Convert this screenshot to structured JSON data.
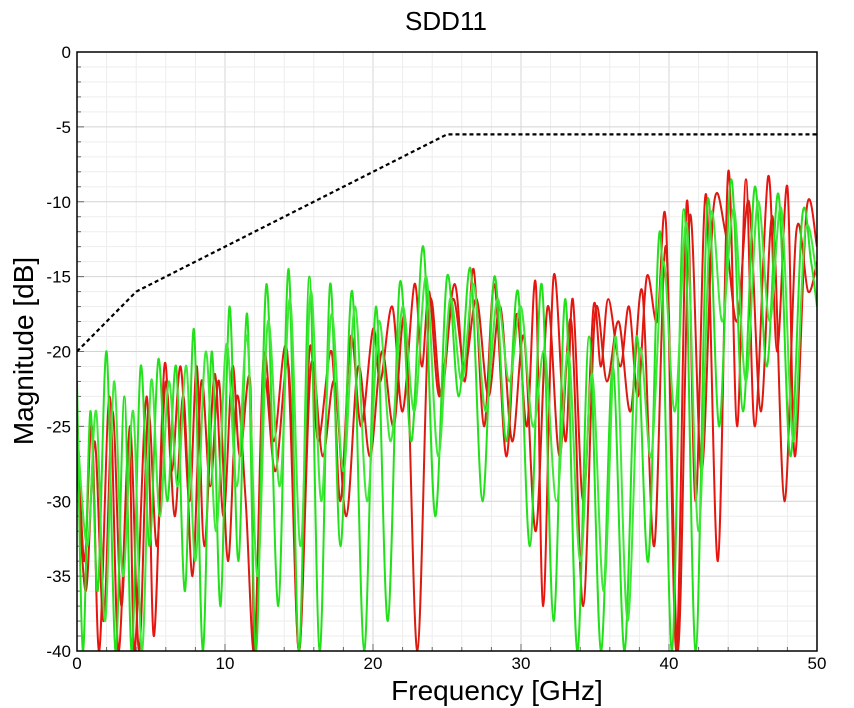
{
  "chart_data": {
    "type": "line",
    "title": "SDD11",
    "xlabel": "Frequency [GHz]",
    "ylabel": "Magnitude [dB]",
    "xlim": [
      0,
      50
    ],
    "ylim": [
      -40,
      0
    ],
    "xticks": [
      "0",
      "10",
      "20",
      "30",
      "40",
      "50"
    ],
    "yticks": [
      "0",
      "-5",
      "-10",
      "-15",
      "-20",
      "-25",
      "-30",
      "-35",
      "-40"
    ],
    "grid": true,
    "legend": "none",
    "mask": {
      "color": "#000000",
      "style": "dashed",
      "x": [
        0,
        4,
        25,
        50
      ],
      "y": [
        -20,
        -16,
        -5.5,
        -5.5
      ]
    },
    "series": [
      {
        "color": "#e8140f",
        "x": [
          0,
          0.5,
          1,
          1.5,
          2.2,
          2.8,
          3.5,
          3.9,
          4.7,
          5.2,
          5.9,
          6.4,
          7,
          7.6,
          8.1,
          8.6,
          9.3,
          9.9,
          10.5,
          11,
          11.7,
          12,
          12.6,
          13.3,
          14.2,
          15,
          15.7,
          16.3,
          17.2,
          17.8,
          18.5,
          19.2,
          20,
          20.5,
          21.3,
          22,
          22.8,
          23.3,
          23.8,
          24.5,
          25.5,
          26.2,
          26.8,
          27.5,
          28.2,
          29,
          29.7,
          30.4,
          31,
          31.5,
          32.2,
          33,
          33.5,
          34.2,
          34.9,
          35.4,
          35.9,
          36.7,
          37.3,
          37.9,
          38.5,
          39.2,
          39.8,
          40.5,
          41.2,
          41.8,
          42.5,
          43.3,
          44,
          44.6,
          45.2,
          45.8,
          46.7,
          47.3,
          48,
          48.5,
          49.3,
          50
        ],
        "y": [
          -24,
          -34,
          -25,
          -40,
          -23,
          -40,
          -26,
          -40,
          -23,
          -39,
          -21,
          -28,
          -21,
          -30,
          -21,
          -33,
          -21.5,
          -31,
          -21,
          -27,
          -22,
          -40,
          -20.5,
          -26,
          -20,
          -40,
          -20,
          -26,
          -20,
          -30,
          -19,
          -25,
          -18.5,
          -22,
          -17,
          -24,
          -15.5,
          -21,
          -16,
          -23,
          -15.5,
          -22,
          -14.5,
          -25,
          -15.5,
          -27,
          -17.5,
          -25,
          -15.5,
          -37,
          -15,
          -26,
          -16.5,
          -30,
          -17,
          -21,
          -16.5,
          -21,
          -17,
          -23,
          -15,
          -18,
          -11.5,
          -40,
          -10,
          -30,
          -9.5,
          -34,
          -8,
          -25,
          -8.5,
          -25,
          -8.3,
          -20,
          -9,
          -27,
          -10.5,
          -13
        ]
      },
      {
        "color": "#d81c10",
        "x": [
          0,
          0.6,
          1.2,
          1.8,
          2.4,
          3,
          3.6,
          4.2,
          4.8,
          5.4,
          6,
          6.6,
          7.2,
          7.8,
          8.4,
          9,
          9.6,
          10.2,
          10.8,
          11.4,
          12,
          12.6,
          13.4,
          14.3,
          15,
          15.8,
          16.6,
          17.4,
          18.2,
          19,
          19.8,
          20.6,
          21.4,
          22.2,
          23,
          23.8,
          24.6,
          25.4,
          26.2,
          27,
          27.8,
          28.6,
          29.4,
          30.2,
          31,
          31.8,
          32.6,
          33.4,
          34.2,
          35,
          35.8,
          36.6,
          37.4,
          38.2,
          39,
          39.8,
          40.6,
          41.4,
          42.2,
          43,
          43.8,
          44.6,
          45.4,
          46.2,
          47,
          47.8,
          48.6,
          49.4,
          50
        ],
        "y": [
          -27,
          -36,
          -26,
          -38,
          -24,
          -37,
          -25,
          -40,
          -24,
          -33,
          -22,
          -31,
          -23,
          -35,
          -22,
          -29,
          -22,
          -34,
          -23,
          -30,
          -40,
          -22,
          -28,
          -21,
          -40,
          -21,
          -27,
          -22,
          -31,
          -21,
          -27,
          -20,
          -25,
          -18,
          -40,
          -17,
          -23,
          -16.5,
          -21,
          -16.5,
          -23,
          -17,
          -26,
          -19,
          -32,
          -17,
          -27,
          -18,
          -37,
          -17.5,
          -22,
          -18,
          -24,
          -16,
          -33,
          -13,
          -40,
          -11,
          -28,
          -10.5,
          -12,
          -18,
          -10,
          -24,
          -11,
          -30,
          -12,
          -16,
          -14
        ]
      },
      {
        "color": "#22e01a",
        "x": [
          0,
          0.4,
          0.9,
          1.4,
          2,
          2.6,
          3.2,
          3.7,
          4.3,
          4.9,
          5.5,
          6.1,
          6.7,
          7.3,
          7.9,
          8.5,
          9.1,
          9.7,
          10.3,
          10.9,
          11.5,
          12.1,
          12.8,
          13.6,
          14.3,
          15,
          15.7,
          16.4,
          17.1,
          17.8,
          18.6,
          19.4,
          20.2,
          21,
          21.8,
          22.6,
          23.4,
          24.2,
          25,
          25.8,
          26.6,
          27.4,
          28.2,
          29,
          29.8,
          30.6,
          31.4,
          32.2,
          33,
          33.8,
          34.6,
          35.4,
          36.2,
          37,
          37.8,
          38.6,
          39.4,
          40.2,
          41,
          41.8,
          42.6,
          43.4,
          44.2,
          45,
          45.8,
          46.6,
          47.4,
          48.2,
          49,
          49.6,
          50
        ],
        "y": [
          -22,
          -40,
          -24,
          -36,
          -20,
          -40,
          -23,
          -40,
          -21,
          -33,
          -20.5,
          -30,
          -21,
          -36,
          -18.5,
          -40,
          -20,
          -37,
          -17,
          -34,
          -17.5,
          -40,
          -15.5,
          -37,
          -14.5,
          -40,
          -15,
          -40,
          -15.5,
          -33,
          -16,
          -40,
          -17,
          -38,
          -15.5,
          -26,
          -13,
          -31,
          -15,
          -23,
          -14.5,
          -30,
          -15,
          -26,
          -16,
          -33,
          -15.5,
          -38,
          -16.5,
          -40,
          -19,
          -40,
          -21,
          -40,
          -19,
          -34,
          -12,
          -40,
          -10.5,
          -40,
          -10,
          -25,
          -8.5,
          -24,
          -9,
          -21,
          -9.5,
          -27,
          -11,
          -14,
          -17
        ]
      },
      {
        "color": "#3ee836",
        "x": [
          0,
          0.7,
          1.3,
          1.9,
          2.5,
          3.1,
          3.8,
          4.4,
          5,
          5.6,
          6.2,
          6.8,
          7.4,
          8,
          8.7,
          9.4,
          10.1,
          10.8,
          11.5,
          12.2,
          12.9,
          13.7,
          14.4,
          15.1,
          15.8,
          16.5,
          17.2,
          18,
          18.8,
          19.6,
          20.4,
          21.2,
          22,
          22.8,
          23.6,
          24.4,
          25.2,
          26,
          26.8,
          27.6,
          28.4,
          29.2,
          30,
          30.8,
          31.6,
          32.4,
          33.2,
          34,
          34.8,
          35.6,
          36.4,
          37.2,
          38,
          38.8,
          39.6,
          40.4,
          41.2,
          42,
          42.8,
          43.6,
          44.4,
          45.2,
          46,
          46.8,
          47.6,
          48.4,
          49.2,
          50
        ],
        "y": [
          -25,
          -33,
          -24,
          -38,
          -22,
          -35,
          -24,
          -40,
          -22,
          -31,
          -22,
          -29,
          -21,
          -34,
          -20,
          -32,
          -19.5,
          -29,
          -19,
          -35,
          -18,
          -29,
          -16.5,
          -33,
          -16,
          -30,
          -17.5,
          -28,
          -17,
          -30,
          -18,
          -26,
          -17,
          -24,
          -15,
          -27,
          -16.5,
          -22,
          -15.5,
          -24,
          -16.5,
          -22,
          -17,
          -25,
          -20,
          -30,
          -20,
          -34,
          -21.5,
          -36,
          -19,
          -38,
          -20,
          -27,
          -14,
          -24,
          -11.5,
          -32,
          -11,
          -18,
          -10.5,
          -22,
          -10,
          -18,
          -10.5,
          -26,
          -12,
          -15
        ]
      }
    ]
  }
}
